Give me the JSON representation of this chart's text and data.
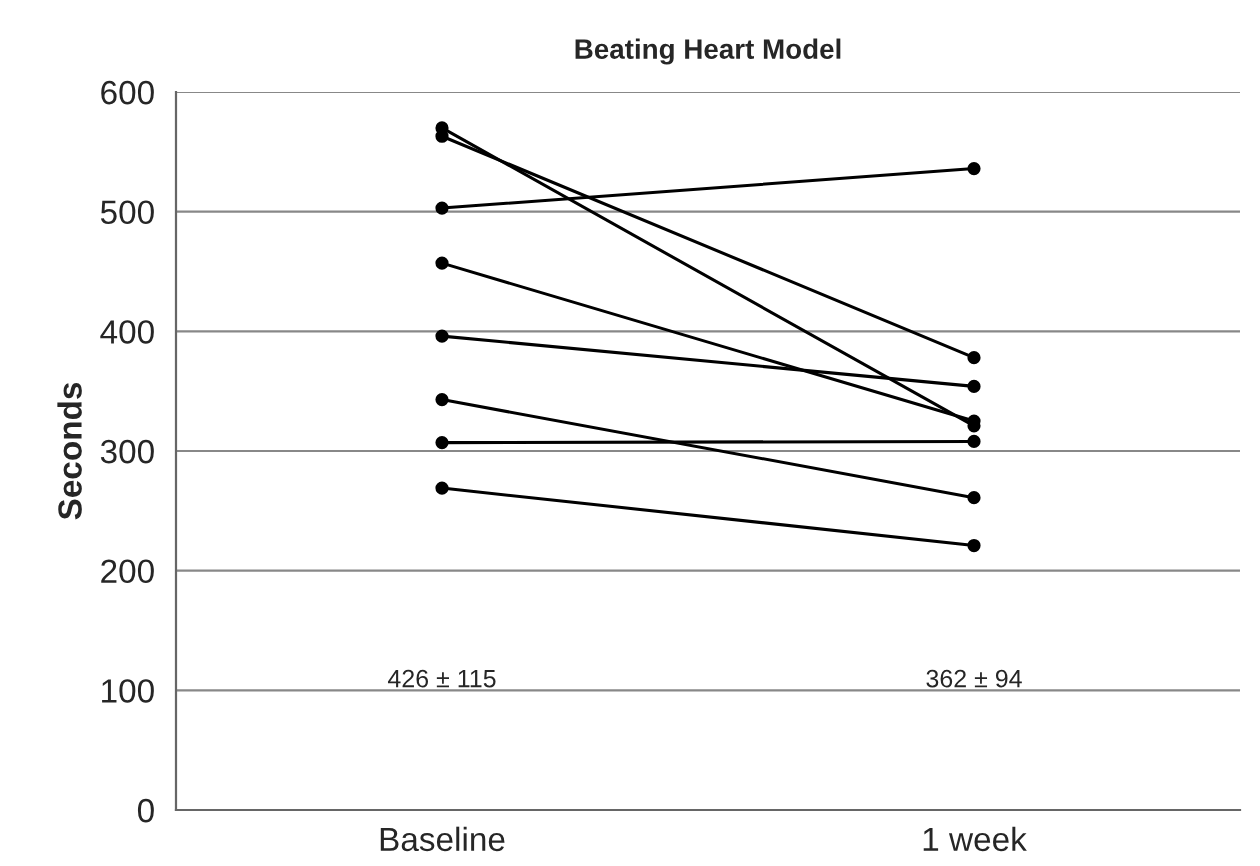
{
  "chart_data": {
    "type": "line",
    "title": "Beating Heart Model",
    "ylabel": "Seconds",
    "categories": [
      "Baseline",
      "1 week"
    ],
    "series": [
      {
        "color": "#000000",
        "values": [
          570,
          321
        ]
      },
      {
        "color": "#000000",
        "values": [
          563,
          378
        ]
      },
      {
        "color": "#000000",
        "values": [
          503,
          536
        ]
      },
      {
        "color": "#000000",
        "values": [
          457,
          325
        ]
      },
      {
        "color": "#000000",
        "values": [
          396,
          354
        ]
      },
      {
        "color": "#000000",
        "values": [
          343,
          261
        ]
      },
      {
        "color": "#000000",
        "values": [
          307,
          308
        ]
      },
      {
        "color": "#000000",
        "values": [
          269,
          221
        ]
      }
    ],
    "ylim": [
      0,
      600
    ],
    "yticks": [
      0,
      100,
      200,
      300,
      400,
      500,
      600
    ],
    "grid": "y",
    "marker": "circle",
    "line_style": "solid",
    "legend": false,
    "annotations": [
      "426 ± 115",
      "362 ± 94"
    ]
  }
}
